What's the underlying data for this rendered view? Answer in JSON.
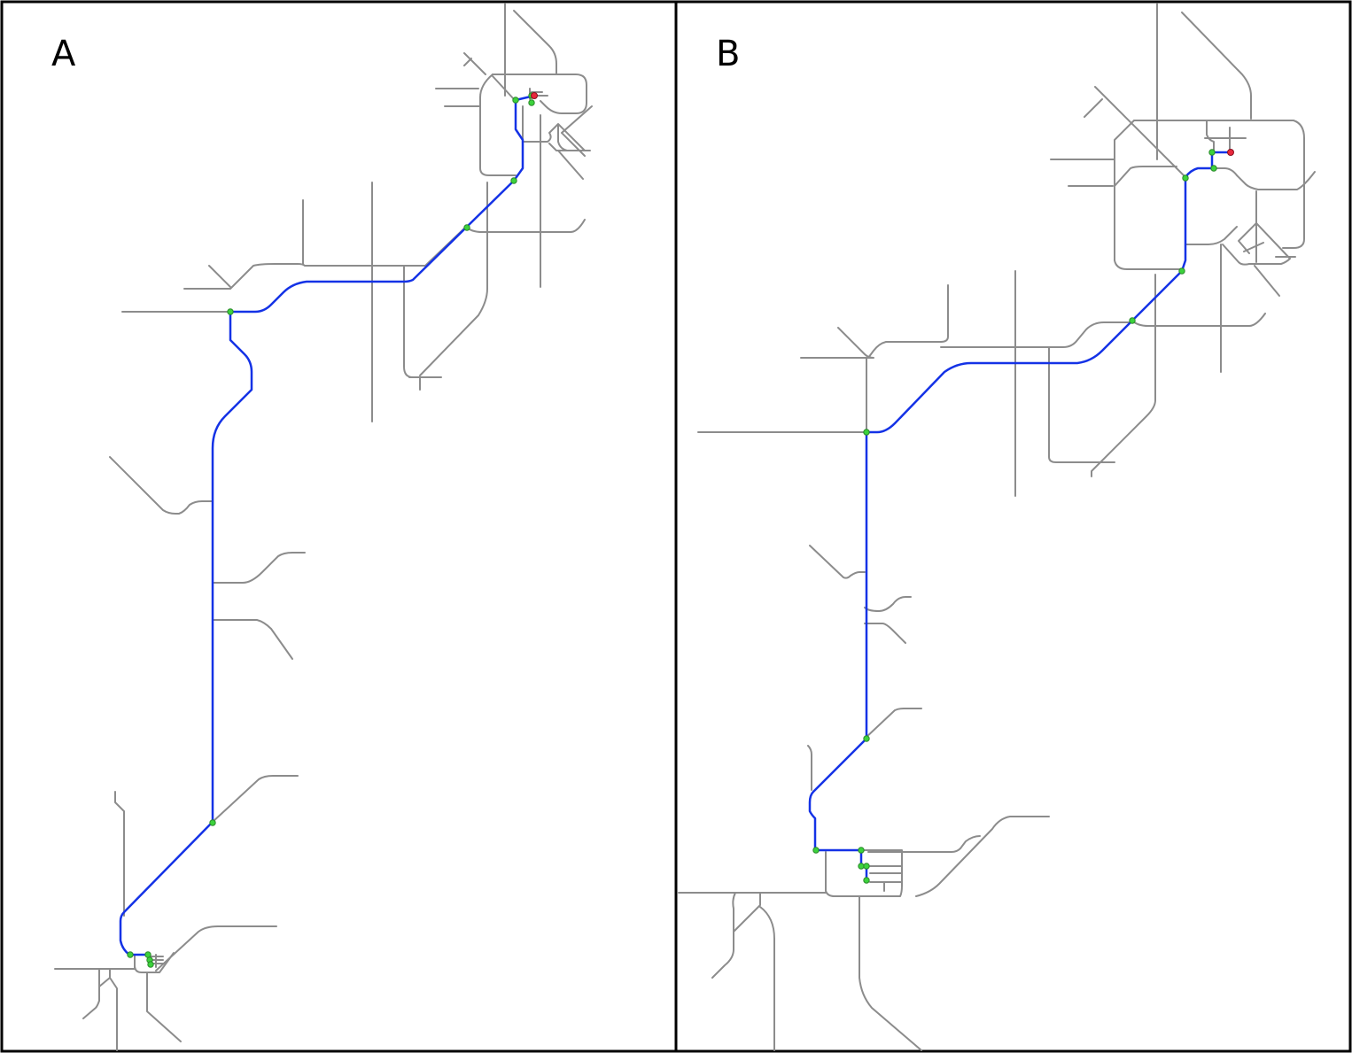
{
  "panels": [
    {
      "id": "A",
      "label": "A"
    },
    {
      "id": "B",
      "label": "B"
    }
  ],
  "colors": {
    "road": "#8c8c8c",
    "route": "#1432e6",
    "waypoint": "#3cd23c",
    "destination": "#e8283c",
    "frame": "#000000"
  }
}
